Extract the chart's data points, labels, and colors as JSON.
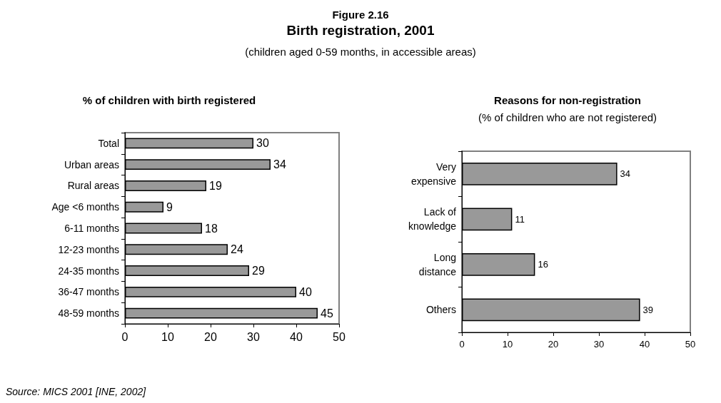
{
  "chart_data": [
    {
      "type": "other",
      "title": "Birth registration, 2001",
      "subtitle": "(children aged 0-59 months, in accessible areas)",
      "annotations": [
        "Figure 2.16",
        "Source: MICS 2001 [INE, 2002]"
      ]
    },
    {
      "type": "bar",
      "orientation": "horizontal",
      "title": "% of children with birth registered",
      "categories": [
        "Total",
        "Urban areas",
        "Rural areas",
        "Age <6 months",
        "6-11 months",
        "12-23 months",
        "24-35 months",
        "36-47 months",
        "48-59 months"
      ],
      "values": [
        30,
        34,
        19,
        9,
        18,
        24,
        29,
        40,
        45
      ],
      "color": "#999999",
      "xlim": [
        0,
        50
      ],
      "xticks": [
        0,
        10,
        20,
        30,
        40,
        50
      ],
      "data_labels": true,
      "grid": false
    },
    {
      "type": "bar",
      "orientation": "horizontal",
      "title": "Reasons for non-registration",
      "subtitle": "(% of children who are not registered)",
      "categories": [
        "Very\nexpensive",
        "Lack of\nknowledge",
        "Long\ndistance",
        "Others"
      ],
      "values": [
        34,
        11,
        16,
        39
      ],
      "color": "#999999",
      "xlim": [
        0,
        50
      ],
      "xticks": [
        0,
        10,
        20,
        30,
        40,
        50
      ],
      "data_labels": true,
      "grid": false
    }
  ]
}
